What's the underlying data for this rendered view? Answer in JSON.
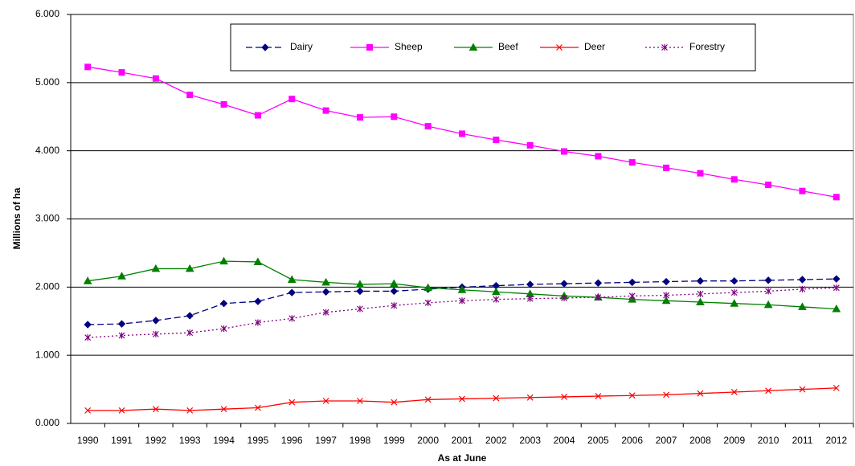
{
  "chart_data": {
    "type": "line",
    "y_label": "Millions of ha",
    "x_label": "As at June",
    "categories": [
      "1990",
      "1991",
      "1992",
      "1993",
      "1994",
      "1995",
      "1996",
      "1997",
      "1998",
      "1999",
      "2000",
      "2001",
      "2002",
      "2003",
      "2004",
      "2005",
      "2006",
      "2007",
      "2008",
      "2009",
      "2010",
      "2011",
      "2012"
    ],
    "ylim": [
      0,
      6
    ],
    "yticks": [
      {
        "value": 0,
        "label": "0.000"
      },
      {
        "value": 1,
        "label": "1.000"
      },
      {
        "value": 2,
        "label": "2.000"
      },
      {
        "value": 3,
        "label": "3.000"
      },
      {
        "value": 4,
        "label": "4.000"
      },
      {
        "value": 5,
        "label": "5.000"
      },
      {
        "value": 6,
        "label": "6.000"
      }
    ],
    "grid": true,
    "legend": "top",
    "series": [
      {
        "name": "Dairy",
        "color": "#000080",
        "marker": "diamond",
        "dash": "dashed",
        "values": [
          1.45,
          1.46,
          1.51,
          1.58,
          1.76,
          1.79,
          1.92,
          1.93,
          1.94,
          1.94,
          1.97,
          2.0,
          2.02,
          2.04,
          2.05,
          2.06,
          2.07,
          2.08,
          2.09,
          2.09,
          2.1,
          2.11,
          2.12
        ]
      },
      {
        "name": "Sheep",
        "color": "#ff00ff",
        "marker": "square",
        "dash": "solid",
        "values": [
          5.23,
          5.15,
          5.06,
          4.82,
          4.68,
          4.52,
          4.76,
          4.59,
          4.49,
          4.5,
          4.36,
          4.25,
          4.16,
          4.08,
          3.99,
          3.92,
          3.83,
          3.75,
          3.67,
          3.58,
          3.5,
          3.41,
          3.32
        ]
      },
      {
        "name": "Beef",
        "color": "#008000",
        "marker": "triangle",
        "dash": "solid",
        "values": [
          2.09,
          2.16,
          2.27,
          2.27,
          2.38,
          2.37,
          2.11,
          2.07,
          2.04,
          2.05,
          1.99,
          1.96,
          1.93,
          1.9,
          1.87,
          1.85,
          1.82,
          1.8,
          1.78,
          1.76,
          1.74,
          1.71,
          1.68
        ]
      },
      {
        "name": "Deer",
        "color": "#ff0000",
        "marker": "x",
        "dash": "solid",
        "values": [
          0.19,
          0.19,
          0.21,
          0.19,
          0.21,
          0.23,
          0.31,
          0.33,
          0.33,
          0.31,
          0.35,
          0.36,
          0.37,
          0.38,
          0.39,
          0.4,
          0.41,
          0.42,
          0.44,
          0.46,
          0.48,
          0.5,
          0.52
        ]
      },
      {
        "name": "Forestry",
        "color": "#800080",
        "marker": "star",
        "dash": "dotted",
        "values": [
          1.26,
          1.29,
          1.31,
          1.33,
          1.39,
          1.48,
          1.54,
          1.63,
          1.68,
          1.73,
          1.77,
          1.8,
          1.82,
          1.83,
          1.84,
          1.85,
          1.87,
          1.88,
          1.9,
          1.92,
          1.94,
          1.97,
          1.99
        ]
      }
    ]
  }
}
